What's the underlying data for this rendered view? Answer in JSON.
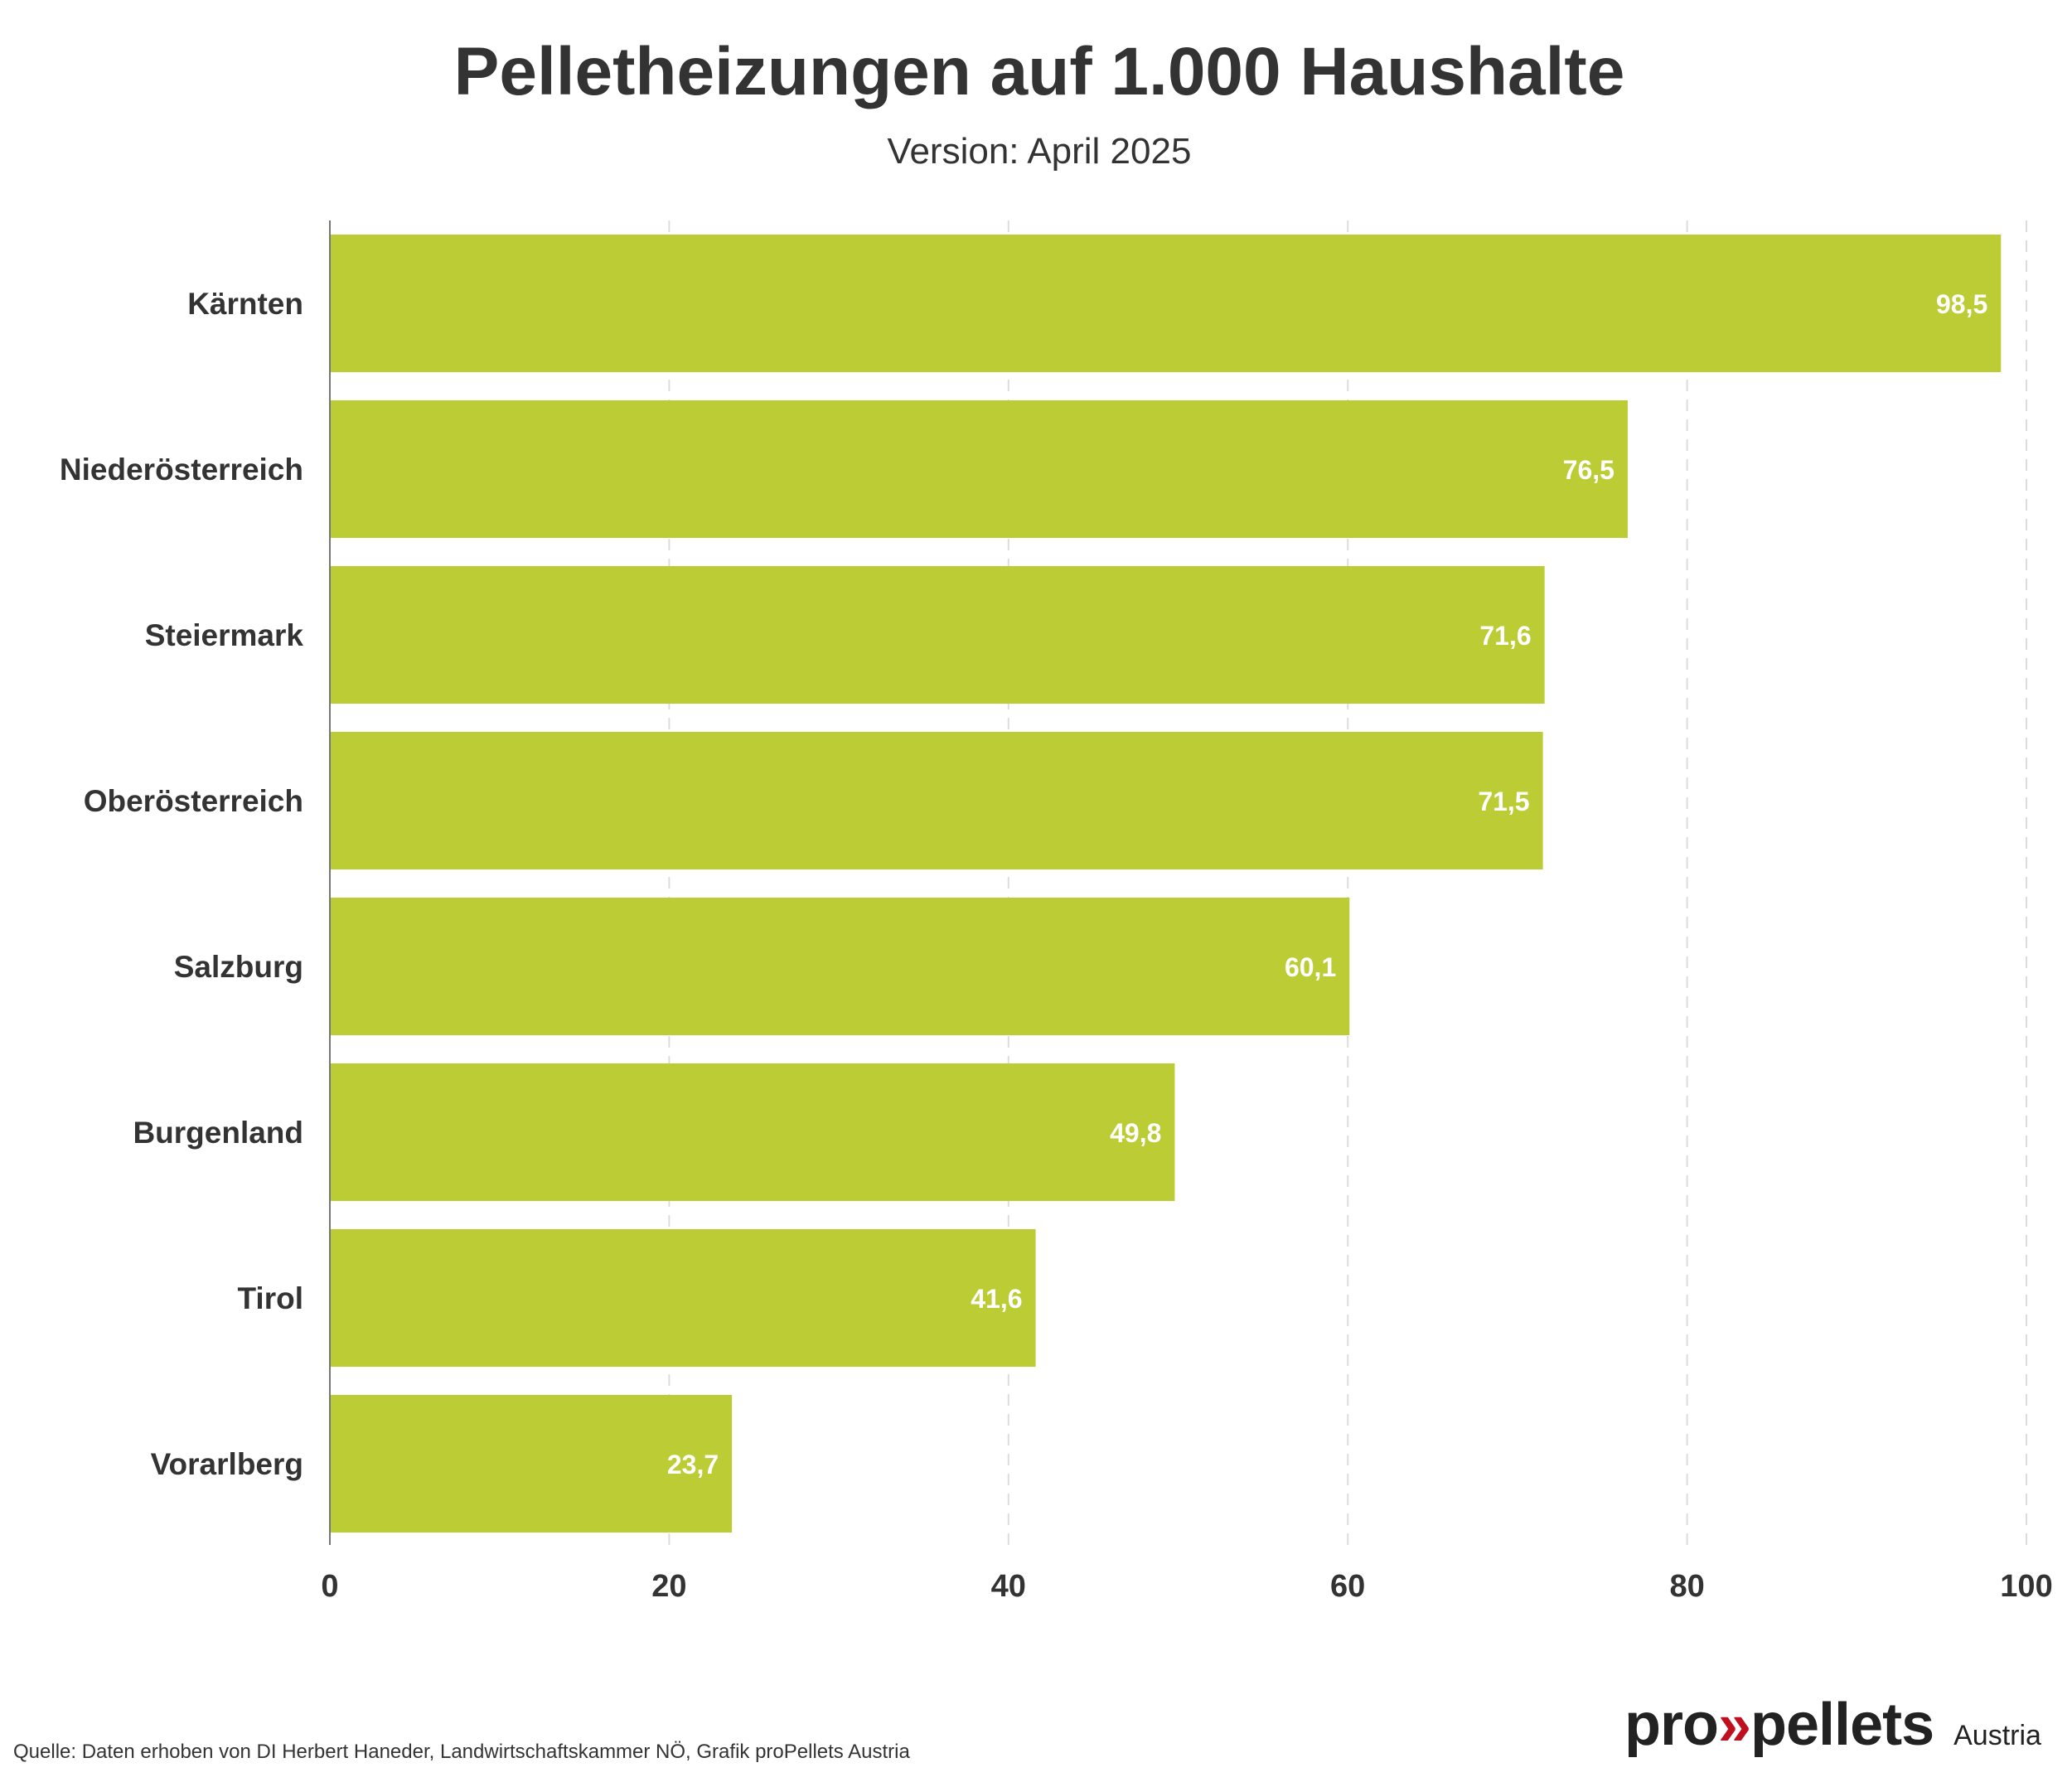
{
  "header": {
    "title": "Pelletheizungen auf 1.000 Haushalte",
    "subtitle": "Version: April 2025"
  },
  "footer": {
    "source": "Quelle: Daten erhoben von DI Herbert Haneder, Landwirtschaftskammer NÖ, Grafik proPellets Austria"
  },
  "logo": {
    "pro": "pro",
    "chevrons": "»",
    "pellets": "pellets",
    "region": "Austria"
  },
  "colors": {
    "bar": "#BCCC34",
    "text": "#333333",
    "value_label": "#FFFFFF",
    "grid": "#DDDDDD",
    "logo_accent": "#C0101F"
  },
  "chart_data": {
    "type": "bar",
    "orientation": "horizontal",
    "title": "Pelletheizungen auf 1.000 Haushalte",
    "subtitle": "Version: April 2025",
    "categories": [
      "Kärnten",
      "Niederösterreich",
      "Steiermark",
      "Oberösterreich",
      "Salzburg",
      "Burgenland",
      "Tirol",
      "Vorarlberg"
    ],
    "values": [
      98.5,
      76.5,
      71.6,
      71.5,
      60.1,
      49.8,
      41.6,
      23.7
    ],
    "value_labels": [
      "98,5",
      "76,5",
      "71,6",
      "71,5",
      "60,1",
      "49,8",
      "41,6",
      "23,7"
    ],
    "xlim": [
      0,
      100
    ],
    "xticks": [
      0,
      20,
      40,
      60,
      80,
      100
    ],
    "xtick_labels": [
      "0",
      "20",
      "40",
      "60",
      "80",
      "100"
    ],
    "xlabel": "",
    "ylabel": "",
    "grid": "vertical dashed",
    "legend": "none"
  }
}
